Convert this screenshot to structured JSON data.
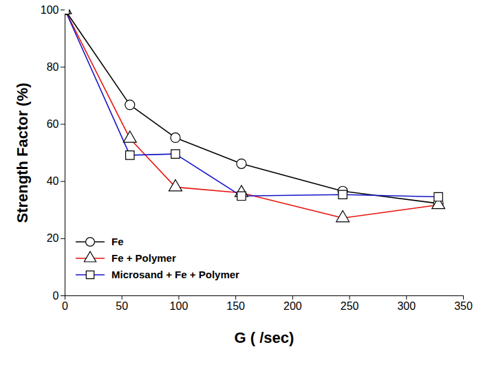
{
  "chart_data": {
    "type": "line",
    "xlabel": "G ( /sec)",
    "ylabel": "Strength Factor (%)",
    "x": [
      0,
      57,
      97,
      155,
      244,
      328
    ],
    "xlim": [
      0,
      350
    ],
    "xticks": [
      0,
      50,
      100,
      150,
      200,
      250,
      300,
      350
    ],
    "ylim": [
      0,
      100
    ],
    "yticks": [
      0,
      20,
      40,
      60,
      80,
      100
    ],
    "grid": false,
    "legend": "lower left",
    "series": [
      {
        "name": "Fe",
        "color": "#000000",
        "marker": "circle",
        "values": [
          100,
          66.8,
          55.3,
          46.2,
          36.6,
          32.3
        ]
      },
      {
        "name": "Fe + Polymer",
        "color": "#e8120c",
        "marker": "triangle",
        "values": [
          100,
          55,
          38,
          36,
          27.2,
          31.8
        ]
      },
      {
        "name": "Microsand + Fe + Polymer",
        "color": "#1515c8",
        "marker": "square",
        "values": [
          100,
          49.2,
          49.6,
          34.9,
          35.4,
          34.6
        ]
      }
    ]
  }
}
